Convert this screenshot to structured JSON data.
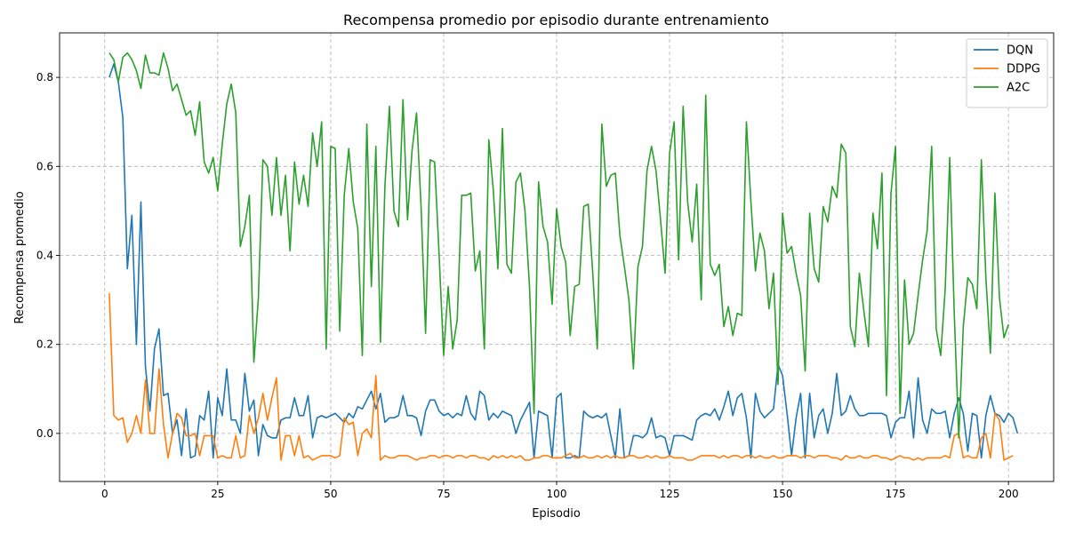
{
  "chart_data": {
    "type": "line",
    "title": "Recompensa promedio por episodio durante entrenamiento",
    "xlabel": "Episodio",
    "ylabel": "Recompensa promedio",
    "xlim": [
      -10,
      210
    ],
    "ylim": [
      -0.108,
      0.9
    ],
    "xticks": [
      0,
      25,
      50,
      75,
      100,
      125,
      150,
      175,
      200
    ],
    "yticks": [
      0.0,
      0.2,
      0.4,
      0.6,
      0.8
    ],
    "grid": true,
    "legend_position": "top-right",
    "x_start": 1,
    "series": [
      {
        "name": "DQN",
        "color": "#1f77b4",
        "values": [
          0.8,
          0.83,
          0.79,
          0.71,
          0.37,
          0.49,
          0.2,
          0.52,
          0.15,
          0.05,
          0.19,
          0.235,
          0.085,
          0.09,
          0.0,
          0.03,
          -0.05,
          0.055,
          -0.055,
          -0.05,
          0.04,
          0.03,
          0.095,
          -0.055,
          0.08,
          0.04,
          0.145,
          0.03,
          0.03,
          0.0,
          0.135,
          0.05,
          0.075,
          -0.05,
          0.02,
          -0.005,
          -0.01,
          -0.01,
          0.03,
          0.035,
          0.035,
          0.08,
          0.04,
          0.04,
          0.085,
          -0.01,
          0.035,
          0.04,
          0.035,
          0.04,
          0.045,
          0.035,
          0.025,
          0.045,
          0.035,
          0.06,
          0.055,
          0.075,
          0.095,
          0.055,
          0.09,
          0.025,
          0.035,
          0.035,
          0.04,
          0.085,
          0.04,
          0.04,
          0.035,
          -0.005,
          0.05,
          0.075,
          0.075,
          0.05,
          0.04,
          0.045,
          0.035,
          0.045,
          0.04,
          0.085,
          0.045,
          0.03,
          0.095,
          0.085,
          0.03,
          0.045,
          0.035,
          0.05,
          0.045,
          0.04,
          0.0,
          0.03,
          0.05,
          0.07,
          -0.055,
          0.05,
          0.045,
          0.04,
          -0.055,
          0.08,
          0.09,
          -0.055,
          -0.055,
          -0.05,
          -0.055,
          0.05,
          0.04,
          0.035,
          0.04,
          0.035,
          0.045,
          -0.005,
          -0.055,
          0.055,
          -0.055,
          -0.05,
          -0.005,
          -0.005,
          -0.01,
          0.0,
          0.035,
          -0.01,
          -0.005,
          -0.01,
          -0.05,
          -0.005,
          -0.005,
          -0.005,
          -0.01,
          -0.015,
          0.03,
          0.04,
          0.045,
          0.04,
          0.055,
          0.03,
          0.06,
          0.095,
          0.04,
          0.08,
          0.09,
          0.035,
          -0.055,
          0.09,
          0.05,
          0.035,
          0.045,
          0.055,
          0.155,
          0.13,
          0.045,
          -0.05,
          0.035,
          0.09,
          -0.055,
          0.09,
          -0.01,
          0.04,
          0.055,
          0.0,
          0.045,
          0.135,
          0.04,
          0.05,
          0.085,
          0.055,
          0.04,
          0.04,
          0.045,
          0.045,
          0.045,
          0.045,
          0.04,
          -0.01,
          0.025,
          0.035,
          0.035,
          0.095,
          -0.01,
          0.125,
          0.03,
          0.0,
          0.055,
          0.045,
          0.045,
          0.05,
          -0.01,
          0.045,
          0.08,
          0.045,
          -0.04,
          0.045,
          0.04,
          -0.055,
          0.04,
          0.085,
          0.045,
          0.04,
          0.025,
          0.045,
          0.035,
          0.0
        ]
      },
      {
        "name": "DDPG",
        "color": "#ff7f0e",
        "values": [
          0.315,
          0.04,
          0.03,
          0.035,
          -0.02,
          0.0,
          0.04,
          0.0,
          0.12,
          0.0,
          0.0,
          0.145,
          0.02,
          -0.055,
          0.0,
          0.045,
          0.035,
          -0.005,
          -0.005,
          0.0,
          -0.05,
          -0.005,
          -0.005,
          -0.005,
          -0.055,
          -0.05,
          -0.055,
          -0.055,
          -0.005,
          -0.055,
          -0.05,
          0.04,
          0.0,
          0.035,
          0.09,
          0.03,
          0.08,
          0.125,
          -0.06,
          -0.005,
          -0.005,
          -0.05,
          -0.005,
          -0.055,
          -0.05,
          -0.06,
          -0.055,
          -0.05,
          -0.05,
          -0.05,
          -0.055,
          -0.05,
          0.035,
          0.02,
          0.025,
          -0.05,
          0.0,
          0.01,
          -0.01,
          0.13,
          -0.06,
          -0.05,
          -0.055,
          -0.055,
          -0.05,
          -0.05,
          -0.05,
          -0.055,
          -0.06,
          -0.055,
          -0.055,
          -0.05,
          -0.05,
          -0.055,
          -0.05,
          -0.05,
          -0.055,
          -0.05,
          -0.05,
          -0.055,
          -0.05,
          -0.05,
          -0.055,
          -0.055,
          -0.06,
          -0.05,
          -0.055,
          -0.05,
          -0.055,
          -0.05,
          -0.055,
          -0.05,
          -0.06,
          -0.06,
          -0.055,
          -0.055,
          -0.05,
          -0.05,
          -0.055,
          -0.055,
          -0.055,
          -0.05,
          -0.045,
          -0.055,
          -0.055,
          -0.05,
          -0.055,
          -0.055,
          -0.05,
          -0.055,
          -0.05,
          -0.055,
          -0.05,
          -0.055,
          -0.055,
          -0.05,
          -0.05,
          -0.055,
          -0.055,
          -0.05,
          -0.055,
          -0.05,
          -0.055,
          -0.055,
          -0.05,
          -0.055,
          -0.055,
          -0.055,
          -0.06,
          -0.06,
          -0.055,
          -0.05,
          -0.05,
          -0.05,
          -0.05,
          -0.055,
          -0.05,
          -0.055,
          -0.05,
          -0.05,
          -0.055,
          -0.05,
          -0.05,
          -0.055,
          -0.05,
          -0.055,
          -0.055,
          -0.05,
          -0.055,
          -0.055,
          -0.05,
          -0.05,
          -0.05,
          -0.055,
          -0.05,
          -0.05,
          -0.055,
          -0.05,
          -0.05,
          -0.05,
          -0.055,
          -0.055,
          -0.06,
          -0.05,
          -0.055,
          -0.055,
          -0.05,
          -0.055,
          -0.055,
          -0.05,
          -0.05,
          -0.055,
          -0.055,
          -0.06,
          -0.055,
          -0.05,
          -0.055,
          -0.055,
          -0.06,
          -0.055,
          -0.06,
          -0.055,
          -0.055,
          -0.055,
          -0.055,
          -0.05,
          -0.055,
          -0.005,
          0.0,
          -0.055,
          -0.05,
          -0.055,
          -0.055,
          -0.01,
          0.0,
          -0.055,
          0.045,
          0.03,
          -0.06,
          -0.055,
          -0.05
        ]
      },
      {
        "name": "A2C",
        "color": "#2ca02c",
        "values": [
          0.855,
          0.84,
          0.79,
          0.845,
          0.855,
          0.84,
          0.815,
          0.775,
          0.85,
          0.81,
          0.81,
          0.805,
          0.855,
          0.82,
          0.77,
          0.785,
          0.75,
          0.715,
          0.725,
          0.67,
          0.745,
          0.61,
          0.585,
          0.62,
          0.545,
          0.65,
          0.74,
          0.785,
          0.72,
          0.42,
          0.465,
          0.535,
          0.16,
          0.305,
          0.615,
          0.6,
          0.49,
          0.62,
          0.49,
          0.58,
          0.41,
          0.61,
          0.515,
          0.58,
          0.51,
          0.675,
          0.6,
          0.7,
          0.19,
          0.645,
          0.64,
          0.23,
          0.535,
          0.64,
          0.52,
          0.46,
          0.175,
          0.695,
          0.33,
          0.645,
          0.205,
          0.555,
          0.735,
          0.5,
          0.465,
          0.75,
          0.48,
          0.635,
          0.72,
          0.51,
          0.225,
          0.615,
          0.61,
          0.4,
          0.175,
          0.33,
          0.19,
          0.255,
          0.535,
          0.535,
          0.54,
          0.365,
          0.41,
          0.19,
          0.66,
          0.545,
          0.37,
          0.685,
          0.38,
          0.36,
          0.565,
          0.585,
          0.5,
          0.33,
          0.045,
          0.565,
          0.465,
          0.43,
          0.29,
          0.505,
          0.42,
          0.385,
          0.22,
          0.33,
          0.335,
          0.51,
          0.515,
          0.36,
          0.19,
          0.695,
          0.555,
          0.58,
          0.585,
          0.445,
          0.375,
          0.3,
          0.145,
          0.375,
          0.42,
          0.59,
          0.645,
          0.59,
          0.48,
          0.36,
          0.63,
          0.7,
          0.39,
          0.735,
          0.52,
          0.43,
          0.56,
          0.3,
          0.76,
          0.38,
          0.355,
          0.38,
          0.24,
          0.285,
          0.22,
          0.27,
          0.265,
          0.7,
          0.52,
          0.365,
          0.45,
          0.41,
          0.28,
          0.36,
          0.11,
          0.495,
          0.405,
          0.42,
          0.36,
          0.31,
          0.14,
          0.495,
          0.37,
          0.34,
          0.51,
          0.475,
          0.555,
          0.53,
          0.65,
          0.63,
          0.24,
          0.195,
          0.36,
          0.275,
          0.195,
          0.495,
          0.415,
          0.585,
          0.085,
          0.54,
          0.645,
          0.045,
          0.345,
          0.2,
          0.225,
          0.31,
          0.39,
          0.455,
          0.645,
          0.235,
          0.175,
          0.325,
          0.62,
          0.27,
          -0.01,
          0.24,
          0.35,
          0.335,
          0.28,
          0.615,
          0.35,
          0.18,
          0.54,
          0.305,
          0.215,
          0.245
        ]
      }
    ]
  }
}
